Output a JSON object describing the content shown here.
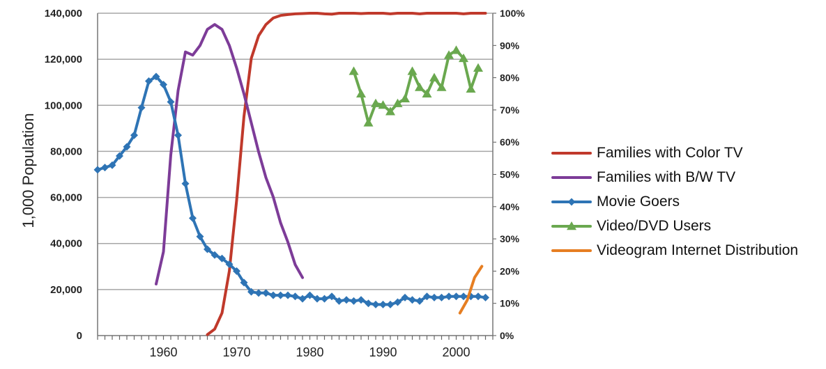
{
  "chart_data": {
    "type": "line",
    "title": "",
    "ylabel": "1,000 Population",
    "xlabel": "",
    "x_ticks": [
      "1960",
      "1970",
      "1980",
      "1990",
      "2000"
    ],
    "xlim": [
      1951,
      2005
    ],
    "y_left": {
      "lim": [
        0,
        140000
      ],
      "ticks": [
        "0",
        "20,000",
        "40,000",
        "60,000",
        "80,000",
        "100,000",
        "120,000",
        "140,000"
      ]
    },
    "y_right": {
      "lim": [
        0,
        100
      ],
      "ticks": [
        "0%",
        "10%",
        "20%",
        "30%",
        "40%",
        "50%",
        "60%",
        "70%",
        "80%",
        "90%",
        "100%"
      ]
    },
    "grid": true,
    "legend_position": "right",
    "series": [
      {
        "name": "Families with Color TV",
        "axis": "right",
        "color": "#c0392b",
        "marker": "none",
        "x": [
          1966,
          1967,
          1968,
          1969,
          1970,
          1971,
          1972,
          1973,
          1974,
          1975,
          1976,
          1977,
          1978,
          1979,
          1980,
          1981,
          1982,
          1983,
          1984,
          1985,
          1986,
          1987,
          1988,
          1989,
          1990,
          1991,
          1992,
          1993,
          1994,
          1995,
          1996,
          1997,
          1998,
          1999,
          2000,
          2001,
          2002,
          2003,
          2004
        ],
        "values": [
          0.3,
          2,
          7,
          20,
          42,
          68,
          86,
          93,
          96.5,
          98.5,
          99.3,
          99.6,
          99.8,
          99.9,
          100,
          100,
          99.8,
          99.7,
          100,
          100,
          100,
          99.9,
          100,
          100,
          100,
          99.8,
          100,
          100,
          100,
          99.8,
          100,
          100,
          100,
          100,
          100,
          99.8,
          100,
          100,
          100
        ]
      },
      {
        "name": "Families with B/W TV",
        "axis": "right",
        "color": "#7d3c98",
        "marker": "none",
        "x": [
          1959,
          1960,
          1961,
          1962,
          1963,
          1964,
          1965,
          1966,
          1967,
          1968,
          1969,
          1970,
          1971,
          1972,
          1973,
          1974,
          1975,
          1976,
          1977,
          1978,
          1979
        ],
        "values": [
          16,
          26,
          56,
          76,
          88,
          87,
          90,
          95,
          96.5,
          95,
          90,
          83,
          75,
          66,
          57,
          49,
          43,
          35,
          29,
          22,
          18
        ]
      },
      {
        "name": "Movie Goers",
        "axis": "left",
        "color": "#2e74b5",
        "marker": "diamond",
        "x": [
          1951,
          1952,
          1953,
          1954,
          1955,
          1956,
          1957,
          1958,
          1959,
          1960,
          1961,
          1962,
          1963,
          1964,
          1965,
          1966,
          1967,
          1968,
          1969,
          1970,
          1971,
          1972,
          1973,
          1974,
          1975,
          1976,
          1977,
          1978,
          1979,
          1980,
          1981,
          1982,
          1983,
          1984,
          1985,
          1986,
          1987,
          1988,
          1989,
          1990,
          1991,
          1992,
          1993,
          1994,
          1995,
          1996,
          1997,
          1998,
          1999,
          2000,
          2001,
          2002,
          2003,
          2004
        ],
        "values": [
          72000,
          73000,
          74000,
          78000,
          82000,
          87000,
          99000,
          110500,
          112500,
          109000,
          101500,
          87000,
          66000,
          51000,
          43000,
          37500,
          35000,
          33500,
          31000,
          28000,
          23000,
          19000,
          18500,
          18500,
          17500,
          17500,
          17500,
          17000,
          16000,
          17500,
          16000,
          16000,
          17000,
          15000,
          15500,
          15000,
          15500,
          14000,
          13500,
          13500,
          13500,
          14500,
          16500,
          15500,
          15000,
          17000,
          16500,
          16500,
          17000,
          17000,
          17000,
          17000,
          17000,
          16500
        ]
      },
      {
        "name": "Video/DVD Users",
        "axis": "right",
        "color": "#6aa84f",
        "marker": "triangle",
        "x": [
          1986,
          1987,
          1988,
          1989,
          1990,
          1991,
          1992,
          1993,
          1994,
          1995,
          1996,
          1997,
          1998,
          1999,
          2000,
          2001,
          2002,
          2003
        ],
        "values": [
          82,
          75,
          66,
          72,
          71.5,
          69.5,
          72,
          73.5,
          82,
          77,
          75,
          80,
          77,
          87,
          88.5,
          86,
          76.5,
          83
        ]
      },
      {
        "name": "Videogram Internet Distribution",
        "axis": "right",
        "color": "#e67e22",
        "marker": "none",
        "x": [
          2000.5,
          2001.5,
          2002.5,
          2003.5
        ],
        "values": [
          7,
          11,
          18,
          21.5
        ]
      }
    ]
  }
}
